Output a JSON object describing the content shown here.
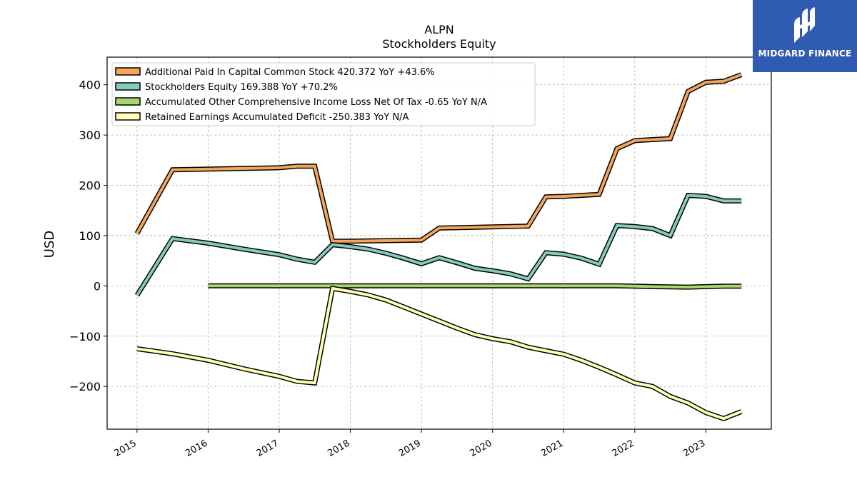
{
  "chart_data": {
    "type": "line",
    "title": "ALPN",
    "subtitle": "Stockholders  Equity",
    "ylabel": "USD",
    "ylim": [
      -285,
      455
    ],
    "xlim": [
      2014.58,
      2023.92
    ],
    "yticks": [
      400,
      300,
      200,
      100,
      0,
      -100,
      -200
    ],
    "ytick_labels": [
      "400",
      "300",
      "200",
      "100",
      "0",
      "−100",
      "−200"
    ],
    "xticks": [
      2015,
      2016,
      2017,
      2018,
      2019,
      2020,
      2021,
      2022,
      2023
    ],
    "xtick_labels": [
      "2015",
      "2016",
      "2017",
      "2018",
      "2019",
      "2020",
      "2021",
      "2022",
      "2023"
    ],
    "grid": true,
    "legend_position": "top-left",
    "series": [
      {
        "name": "Additional Paid In Capital Common Stock  420.372 YoY +43.6%",
        "color": "#f5a45a",
        "x": [
          2015.0,
          2015.5,
          2017.0,
          2017.25,
          2017.5,
          2017.75,
          2018.0,
          2019.0,
          2019.25,
          2020.5,
          2020.75,
          2021.0,
          2021.5,
          2021.75,
          2022.0,
          2022.5,
          2022.75,
          2023.0,
          2023.25,
          2023.5
        ],
        "values": [
          104,
          231,
          235,
          238,
          238,
          89,
          89,
          91,
          115,
          119,
          177,
          178,
          182,
          273,
          289,
          293,
          387,
          405,
          407,
          420
        ]
      },
      {
        "name": "Stockholders Equity  169.388 YoY +70.2%",
        "color": "#84cbbd",
        "x": [
          2015.0,
          2015.5,
          2016.0,
          2016.5,
          2017.0,
          2017.25,
          2017.5,
          2017.75,
          2018.0,
          2018.25,
          2018.5,
          2018.75,
          2019.0,
          2019.25,
          2019.5,
          2019.75,
          2020.0,
          2020.25,
          2020.5,
          2020.75,
          2021.0,
          2021.25,
          2021.5,
          2021.75,
          2022.0,
          2022.25,
          2022.5,
          2022.75,
          2023.0,
          2023.25,
          2023.5
        ],
        "values": [
          -19,
          94,
          85,
          73,
          62,
          53,
          47,
          82,
          78,
          73,
          65,
          55,
          44,
          56,
          46,
          35,
          30,
          24,
          14,
          66,
          63,
          55,
          43,
          120,
          118,
          114,
          100,
          180,
          178,
          169,
          169
        ]
      },
      {
        "name": "Accumulated Other Comprehensive Income Loss Net Of Tax  -0.65 YoY N/A",
        "color": "#a8d86a",
        "x": [
          2016.0,
          2021.75,
          2022.0,
          2022.25,
          2022.5,
          2022.75,
          2023.0,
          2023.25,
          2023.5
        ],
        "values": [
          0,
          0,
          -0.5,
          -1.5,
          -2,
          -2.5,
          -1.5,
          -0.5,
          -0.65
        ]
      },
      {
        "name": "Retained Earnings Accumulated Deficit  -250.383 YoY N/A",
        "color": "#ffffb3",
        "x": [
          2015.0,
          2015.5,
          2016.0,
          2016.5,
          2017.0,
          2017.25,
          2017.5,
          2017.75,
          2018.0,
          2018.25,
          2018.5,
          2018.75,
          2019.0,
          2019.25,
          2019.5,
          2019.75,
          2020.0,
          2020.25,
          2020.5,
          2020.75,
          2021.0,
          2021.25,
          2021.5,
          2021.75,
          2022.0,
          2022.25,
          2022.5,
          2022.75,
          2023.0,
          2023.25,
          2023.5
        ],
        "values": [
          -125,
          -135,
          -148,
          -165,
          -180,
          -190,
          -193,
          -5,
          -11,
          -18,
          -28,
          -42,
          -56,
          -70,
          -84,
          -97,
          -105,
          -111,
          -122,
          -129,
          -136,
          -148,
          -162,
          -177,
          -193,
          -200,
          -220,
          -233,
          -252,
          -264,
          -250
        ]
      }
    ]
  },
  "logo": {
    "text": "MIDGARD FINANCE"
  }
}
